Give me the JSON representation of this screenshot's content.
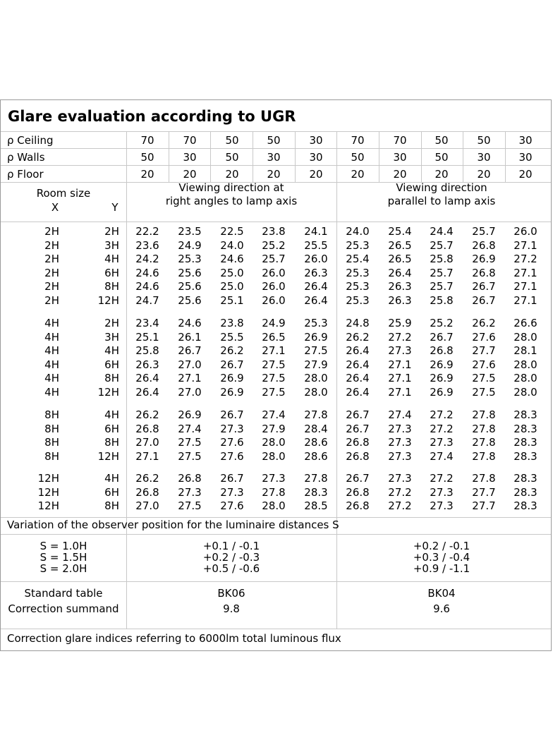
{
  "title": "Glare evaluation according to UGR",
  "reflectance_rows": [
    {
      "label": "ρ Ceiling",
      "values": [
        "70",
        "70",
        "50",
        "50",
        "30",
        "70",
        "70",
        "50",
        "50",
        "30"
      ]
    },
    {
      "label": "ρ Walls",
      "values": [
        "50",
        "30",
        "50",
        "30",
        "30",
        "50",
        "30",
        "50",
        "30",
        "30"
      ]
    },
    {
      "label": "ρ Floor",
      "values": [
        "20",
        "20",
        "20",
        "20",
        "20",
        "20",
        "20",
        "20",
        "20",
        "20"
      ]
    }
  ],
  "header": {
    "room_size": "Room size",
    "x_label": "X",
    "y_label": "Y",
    "direction_right_line1": "Viewing direction at",
    "direction_right_line2": "right angles to lamp axis",
    "direction_parallel_line1": "Viewing direction",
    "direction_parallel_line2": "parallel to lamp axis"
  },
  "groups": [
    {
      "rows": [
        {
          "x": "2H",
          "y": "2H",
          "values": [
            "22.2",
            "23.5",
            "22.5",
            "23.8",
            "24.1",
            "24.0",
            "25.4",
            "24.4",
            "25.7",
            "26.0"
          ]
        },
        {
          "x": "2H",
          "y": "3H",
          "values": [
            "23.6",
            "24.9",
            "24.0",
            "25.2",
            "25.5",
            "25.3",
            "26.5",
            "25.7",
            "26.8",
            "27.1"
          ]
        },
        {
          "x": "2H",
          "y": "4H",
          "values": [
            "24.2",
            "25.3",
            "24.6",
            "25.7",
            "26.0",
            "25.4",
            "26.5",
            "25.8",
            "26.9",
            "27.2"
          ]
        },
        {
          "x": "2H",
          "y": "6H",
          "values": [
            "24.6",
            "25.6",
            "25.0",
            "26.0",
            "26.3",
            "25.3",
            "26.4",
            "25.7",
            "26.8",
            "27.1"
          ]
        },
        {
          "x": "2H",
          "y": "8H",
          "values": [
            "24.6",
            "25.6",
            "25.0",
            "26.0",
            "26.4",
            "25.3",
            "26.3",
            "25.7",
            "26.7",
            "27.1"
          ]
        },
        {
          "x": "2H",
          "y": "12H",
          "values": [
            "24.7",
            "25.6",
            "25.1",
            "26.0",
            "26.4",
            "25.3",
            "26.3",
            "25.8",
            "26.7",
            "27.1"
          ]
        }
      ]
    },
    {
      "rows": [
        {
          "x": "4H",
          "y": "2H",
          "values": [
            "23.4",
            "24.6",
            "23.8",
            "24.9",
            "25.3",
            "24.8",
            "25.9",
            "25.2",
            "26.2",
            "26.6"
          ]
        },
        {
          "x": "4H",
          "y": "3H",
          "values": [
            "25.1",
            "26.1",
            "25.5",
            "26.5",
            "26.9",
            "26.2",
            "27.2",
            "26.7",
            "27.6",
            "28.0"
          ]
        },
        {
          "x": "4H",
          "y": "4H",
          "values": [
            "25.8",
            "26.7",
            "26.2",
            "27.1",
            "27.5",
            "26.4",
            "27.3",
            "26.8",
            "27.7",
            "28.1"
          ]
        },
        {
          "x": "4H",
          "y": "6H",
          "values": [
            "26.3",
            "27.0",
            "26.7",
            "27.5",
            "27.9",
            "26.4",
            "27.1",
            "26.9",
            "27.6",
            "28.0"
          ]
        },
        {
          "x": "4H",
          "y": "8H",
          "values": [
            "26.4",
            "27.1",
            "26.9",
            "27.5",
            "28.0",
            "26.4",
            "27.1",
            "26.9",
            "27.5",
            "28.0"
          ]
        },
        {
          "x": "4H",
          "y": "12H",
          "values": [
            "26.4",
            "27.0",
            "26.9",
            "27.5",
            "28.0",
            "26.4",
            "27.1",
            "26.9",
            "27.5",
            "28.0"
          ]
        }
      ]
    },
    {
      "rows": [
        {
          "x": "8H",
          "y": "4H",
          "values": [
            "26.2",
            "26.9",
            "26.7",
            "27.4",
            "27.8",
            "26.7",
            "27.4",
            "27.2",
            "27.8",
            "28.3"
          ]
        },
        {
          "x": "8H",
          "y": "6H",
          "values": [
            "26.8",
            "27.4",
            "27.3",
            "27.9",
            "28.4",
            "26.7",
            "27.3",
            "27.2",
            "27.8",
            "28.3"
          ]
        },
        {
          "x": "8H",
          "y": "8H",
          "values": [
            "27.0",
            "27.5",
            "27.6",
            "28.0",
            "28.6",
            "26.8",
            "27.3",
            "27.3",
            "27.8",
            "28.3"
          ]
        },
        {
          "x": "8H",
          "y": "12H",
          "values": [
            "27.1",
            "27.5",
            "27.6",
            "28.0",
            "28.6",
            "26.8",
            "27.3",
            "27.4",
            "27.8",
            "28.3"
          ]
        }
      ]
    },
    {
      "rows": [
        {
          "x": "12H",
          "y": "4H",
          "values": [
            "26.2",
            "26.8",
            "26.7",
            "27.3",
            "27.8",
            "26.7",
            "27.3",
            "27.2",
            "27.8",
            "28.3"
          ]
        },
        {
          "x": "12H",
          "y": "6H",
          "values": [
            "26.8",
            "27.3",
            "27.3",
            "27.8",
            "28.3",
            "26.8",
            "27.2",
            "27.3",
            "27.7",
            "28.3"
          ]
        },
        {
          "x": "12H",
          "y": "8H",
          "values": [
            "27.0",
            "27.5",
            "27.6",
            "28.0",
            "28.5",
            "26.8",
            "27.2",
            "27.3",
            "27.7",
            "28.3"
          ]
        }
      ]
    }
  ],
  "variation": {
    "heading": "Variation of the observer position for the luminaire distances S",
    "labels": [
      "S = 1.0H",
      "S = 1.5H",
      "S = 2.0H"
    ],
    "right_angles": [
      "+0.1 / -0.1",
      "+0.2 / -0.3",
      "+0.5 / -0.6"
    ],
    "parallel": [
      "+0.2 / -0.1",
      "+0.3 / -0.4",
      "+0.9 / -1.1"
    ]
  },
  "standard": {
    "label_table": "Standard table",
    "label_correction": "Correction summand",
    "right_angles_table": "BK06",
    "right_angles_correction": "9.8",
    "parallel_table": "BK04",
    "parallel_correction": "9.6"
  },
  "footer": "Correction glare indices referring to 6000lm total luminous flux"
}
